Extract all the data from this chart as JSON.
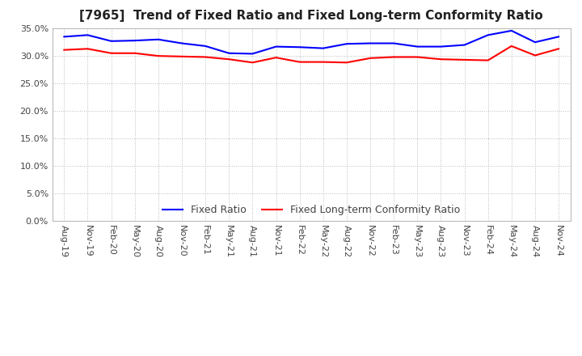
{
  "title": "[7965]  Trend of Fixed Ratio and Fixed Long-term Conformity Ratio",
  "x_labels": [
    "Aug-19",
    "Nov-19",
    "Feb-20",
    "May-20",
    "Aug-20",
    "Nov-20",
    "Feb-21",
    "May-21",
    "Aug-21",
    "Nov-21",
    "Feb-22",
    "May-22",
    "Aug-22",
    "Nov-22",
    "Feb-23",
    "May-23",
    "Aug-23",
    "Nov-23",
    "Feb-24",
    "May-24",
    "Aug-24",
    "Nov-24"
  ],
  "fixed_ratio": [
    33.5,
    33.8,
    32.7,
    32.8,
    33.0,
    32.3,
    31.8,
    30.5,
    30.4,
    31.7,
    31.6,
    31.4,
    32.2,
    32.3,
    32.3,
    31.7,
    31.7,
    32.0,
    33.8,
    34.6,
    32.5,
    33.5
  ],
  "fixed_lt_ratio": [
    31.1,
    31.3,
    30.5,
    30.5,
    30.0,
    29.9,
    29.8,
    29.4,
    28.8,
    29.7,
    28.9,
    28.9,
    28.8,
    29.6,
    29.8,
    29.8,
    29.4,
    29.3,
    29.2,
    31.8,
    30.1,
    31.3
  ],
  "fixed_ratio_color": "#0000FF",
  "fixed_lt_ratio_color": "#FF0000",
  "ylim": [
    0.0,
    35.0
  ],
  "yticks": [
    0.0,
    5.0,
    10.0,
    15.0,
    20.0,
    25.0,
    30.0,
    35.0
  ],
  "background_color": "#FFFFFF",
  "grid_color": "#AAAAAA",
  "legend_fixed_ratio": "Fixed Ratio",
  "legend_fixed_lt_ratio": "Fixed Long-term Conformity Ratio",
  "title_fontsize": 11,
  "axis_fontsize": 8,
  "legend_fontsize": 9,
  "line_width": 1.5
}
